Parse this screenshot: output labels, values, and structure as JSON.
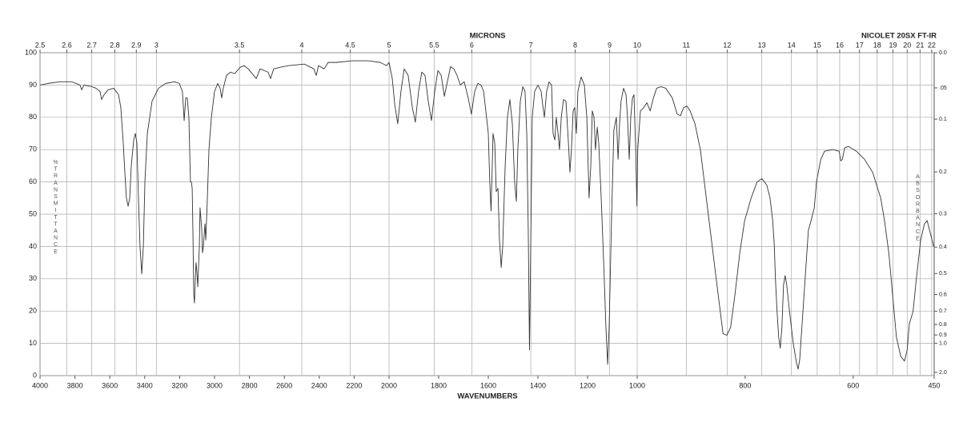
{
  "chart_data": {
    "type": "line",
    "title": "NICOLET 20SX FT-IR",
    "xlabel": "WAVENUMBERS",
    "x2label": "MICRONS",
    "ylabel": "%TRANSMITTANCE",
    "y2label": "ABSORBANCE",
    "color": "#333333",
    "grid": true,
    "xlim": [
      4000,
      450
    ],
    "xbreaks": [
      2000,
      1000
    ],
    "xticks": [
      4000,
      3800,
      3600,
      3400,
      3200,
      3000,
      2800,
      2600,
      2400,
      2200,
      2000,
      1800,
      1600,
      1400,
      1200,
      1000,
      800,
      600,
      450
    ],
    "x2scale": "microns",
    "x2ticks": [
      2.5,
      2.6,
      2.7,
      2.8,
      2.9,
      3,
      3.5,
      4,
      4.5,
      5,
      5.5,
      6,
      7,
      8,
      9,
      10,
      11,
      12,
      13,
      14,
      15,
      16,
      17,
      18,
      19,
      20,
      21,
      22
    ],
    "ylim": [
      0,
      100
    ],
    "yticks": [
      0,
      10,
      20,
      30,
      40,
      50,
      60,
      70,
      80,
      90,
      100
    ],
    "y2scale": "absorbance",
    "y2lim": [
      0,
      2
    ],
    "y2ticks": [
      {
        "value": 0,
        "label": "0.0"
      },
      {
        "value": 0.05,
        "label": ".05"
      },
      0.1,
      0.2,
      0.3,
      0.4,
      0.5,
      0.6,
      0.7,
      0.8,
      0.9,
      {
        "value": 1,
        "label": "1.0"
      },
      {
        "value": 2,
        "label": "2.0"
      }
    ],
    "x": [
      4000,
      3954,
      3885,
      3817,
      3771,
      3761,
      3748,
      3702,
      3679,
      3656,
      3647,
      3633,
      3610,
      3578,
      3550,
      3537,
      3523,
      3514,
      3505,
      3495,
      3486,
      3477,
      3463,
      3454,
      3445,
      3436,
      3427,
      3417,
      3408,
      3399,
      3385,
      3358,
      3321,
      3280,
      3229,
      3202,
      3184,
      3174,
      3165,
      3156,
      3147,
      3138,
      3133,
      3128,
      3124,
      3119,
      3115,
      3110,
      3106,
      3101,
      3096,
      3087,
      3083,
      3073,
      3069,
      3064,
      3055,
      3050,
      3041,
      3032,
      3018,
      3000,
      2982,
      2968,
      2959,
      2950,
      2931,
      2908,
      2885,
      2853,
      2830,
      2807,
      2761,
      2739,
      2693,
      2679,
      2661,
      2624,
      2578,
      2486,
      2431,
      2417,
      2404,
      2372,
      2349,
      2303,
      2211,
      2119,
      2050,
      2014,
      2000,
      1987,
      1977,
      1965,
      1952,
      1939,
      1923,
      1906,
      1894,
      1881,
      1868,
      1855,
      1842,
      1829,
      1816,
      1803,
      1790,
      1777,
      1765,
      1752,
      1739,
      1726,
      1713,
      1697,
      1681,
      1668,
      1655,
      1642,
      1629,
      1619,
      1610,
      1600,
      1594,
      1589,
      1584,
      1581,
      1574,
      1568,
      1561,
      1555,
      1548,
      1542,
      1532,
      1523,
      1513,
      1503,
      1494,
      1487,
      1481,
      1471,
      1461,
      1452,
      1445,
      1439,
      1434,
      1429,
      1423,
      1413,
      1400,
      1387,
      1381,
      1374,
      1365,
      1355,
      1345,
      1339,
      1332,
      1326,
      1319,
      1313,
      1306,
      1297,
      1287,
      1277,
      1271,
      1265,
      1258,
      1252,
      1245,
      1239,
      1226,
      1213,
      1203,
      1194,
      1187,
      1181,
      1174,
      1168,
      1161,
      1155,
      1145,
      1135,
      1126,
      1119,
      1113,
      1103,
      1094,
      1084,
      1077,
      1071,
      1065,
      1055,
      1045,
      1039,
      1032,
      1026,
      1019,
      1013,
      1006,
      1001,
      999,
      994,
      988,
      982,
      976,
      970,
      964,
      956,
      947,
      935,
      926,
      920,
      914,
      908,
      902,
      893,
      883,
      872,
      861,
      850,
      841,
      834,
      827,
      819,
      810,
      801,
      789,
      778,
      769,
      760,
      754,
      749,
      746,
      744,
      741,
      738,
      735,
      732,
      729,
      726,
      723,
      718,
      711,
      705,
      702,
      699,
      693,
      687,
      683,
      678,
      672,
      668,
      660,
      653,
      638,
      626,
      623,
      620,
      616,
      609,
      594,
      579,
      564,
      549,
      542,
      534,
      527,
      520,
      512,
      505,
      500,
      496,
      489,
      483,
      475,
      468,
      463,
      457,
      451
    ],
    "values": [
      90,
      90.5,
      91,
      91,
      90,
      88.5,
      90,
      89.5,
      89,
      88,
      85.5,
      87,
      88.5,
      89,
      87,
      83,
      72,
      63,
      55,
      52.5,
      55,
      65,
      73,
      75,
      72,
      55,
      40,
      31.5,
      40,
      60,
      75,
      85,
      89,
      90.5,
      91,
      90.5,
      88,
      79,
      86,
      86,
      80,
      60,
      60,
      58,
      45,
      25,
      22.5,
      30,
      35,
      32,
      27.5,
      40,
      52,
      45,
      38,
      40,
      47,
      42,
      55,
      70,
      80,
      88,
      90.5,
      89,
      86,
      89,
      93,
      94,
      93.5,
      95.5,
      96,
      95,
      92,
      95,
      94,
      92,
      95,
      95.5,
      96,
      96.5,
      95,
      93,
      96,
      95,
      97,
      97,
      97.5,
      97.5,
      97,
      96,
      97,
      92,
      84,
      78,
      88,
      95,
      93,
      83,
      78.5,
      88,
      94,
      93,
      85,
      79,
      88,
      94.5,
      93,
      86.5,
      91,
      95.7,
      95,
      93,
      90,
      91,
      86,
      81,
      88,
      90.5,
      90,
      88,
      82,
      75,
      60,
      51,
      65,
      75,
      72,
      57,
      58,
      42,
      33.5,
      40,
      65,
      80,
      85.5,
      78,
      60,
      54,
      70,
      85,
      89.5,
      88,
      75,
      45,
      8,
      40,
      80,
      88,
      90,
      88,
      84,
      80,
      88,
      91,
      90,
      75,
      73,
      80,
      75,
      70,
      80,
      85.5,
      85,
      72,
      63,
      70,
      82,
      83,
      75,
      88,
      92.5,
      90,
      80,
      55,
      65,
      82,
      80,
      70,
      77,
      72,
      55,
      35,
      15,
      3.5,
      15,
      50,
      76,
      80,
      67,
      78,
      85,
      89,
      87,
      80,
      67,
      80,
      86,
      87,
      70,
      52.5,
      70,
      82,
      83,
      84.5,
      82,
      86,
      89,
      89.5,
      89,
      86,
      81,
      80.5,
      83,
      83.5,
      82,
      78,
      70,
      55,
      40,
      25,
      13,
      12.5,
      15,
      25,
      38,
      48,
      55,
      60,
      61,
      59,
      55,
      48,
      40,
      30,
      20,
      12,
      8.5,
      15,
      28,
      31,
      28,
      20,
      10,
      4,
      2,
      5,
      20,
      35,
      45,
      48,
      52,
      60,
      67,
      69.5,
      70,
      69.5,
      66.5,
      67,
      70.5,
      71,
      69.5,
      67,
      63,
      55,
      48,
      38,
      25,
      12,
      6,
      4.5,
      8,
      16,
      20,
      30,
      42,
      47,
      48,
      44,
      40
    ]
  }
}
